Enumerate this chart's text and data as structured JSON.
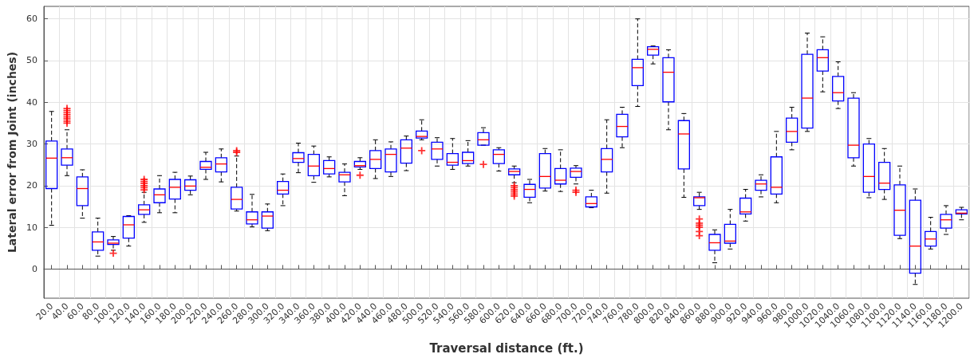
{
  "chart_data": {
    "type": "box",
    "xlabel": "Traversal distance (ft.)",
    "ylabel": "Lateral error from Joint (inches)",
    "color": "#0000ff",
    "grid": true,
    "ylim": [
      -7,
      63
    ],
    "yticks": [
      0,
      10,
      20,
      30,
      40,
      50,
      60
    ],
    "categories": [
      "20.0",
      "40.0",
      "60.0",
      "80.0",
      "100.0",
      "120.0",
      "140.0",
      "160.0",
      "180.0",
      "200.0",
      "220.0",
      "240.0",
      "260.0",
      "280.0",
      "300.0",
      "320.0",
      "340.0",
      "360.0",
      "380.0",
      "400.0",
      "420.0",
      "440.0",
      "460.0",
      "480.0",
      "500.0",
      "520.0",
      "540.0",
      "560.0",
      "580.0",
      "600.0",
      "620.0",
      "640.0",
      "660.0",
      "680.0",
      "700.0",
      "720.0",
      "740.0",
      "760.0",
      "780.0",
      "800.0",
      "820.0",
      "840.0",
      "860.0",
      "880.0",
      "900.0",
      "920.0",
      "940.0",
      "960.0",
      "980.0",
      "1000.0",
      "1020.0",
      "1040.0",
      "1060.0",
      "1080.0",
      "1100.0",
      "1120.0",
      "1140.0",
      "1160.0",
      "1180.0",
      "1200.0"
    ],
    "boxes": [
      {
        "low": 10.5,
        "q1": 19.3,
        "median": 26.6,
        "q3": 30.7,
        "high": 37.8
      },
      {
        "low": 22.4,
        "q1": 24.9,
        "median": 26.7,
        "q3": 28.8,
        "high": 33.4,
        "outliers": [
          35,
          35.5,
          36,
          36.5,
          37,
          37.5,
          38,
          38.5
        ]
      },
      {
        "low": 12.2,
        "q1": 15.2,
        "median": 19.3,
        "q3": 22.1,
        "high": 23.8
      },
      {
        "low": 3.1,
        "q1": 4.5,
        "median": 6.5,
        "q3": 8.9,
        "high": 12.2
      },
      {
        "low": 4.5,
        "q1": 5.9,
        "median": 6.2,
        "q3": 7.0,
        "high": 7.8,
        "outliers": [
          3.8
        ]
      },
      {
        "low": 5.5,
        "q1": 7.4,
        "median": 10.6,
        "q3": 12.6,
        "high": 12.8
      },
      {
        "low": 11.2,
        "q1": 13.1,
        "median": 14.2,
        "q3": 15.4,
        "high": 18.4,
        "outliers": [
          19,
          19.5,
          20,
          20.5,
          21,
          21.5
        ]
      },
      {
        "low": 13.5,
        "q1": 15.9,
        "median": 17.8,
        "q3": 19.2,
        "high": 22.4
      },
      {
        "low": 13.5,
        "q1": 16.8,
        "median": 19.6,
        "q3": 21.5,
        "high": 23.2
      },
      {
        "low": 17.8,
        "q1": 18.9,
        "median": 19.9,
        "q3": 21.4,
        "high": 22.3
      },
      {
        "low": 21.5,
        "q1": 23.9,
        "median": 24.4,
        "q3": 25.8,
        "high": 28.0
      },
      {
        "low": 20.9,
        "q1": 23.3,
        "median": 25.2,
        "q3": 26.7,
        "high": 28.8
      },
      {
        "low": 13.9,
        "q1": 14.4,
        "median": 16.7,
        "q3": 19.6,
        "high": 27.1,
        "outliers": [
          28.0,
          28.4
        ]
      },
      {
        "low": 10.1,
        "q1": 10.8,
        "median": 11.8,
        "q3": 13.7,
        "high": 17.9
      },
      {
        "low": 9.2,
        "q1": 9.8,
        "median": 12.7,
        "q3": 13.7,
        "high": 15.6
      },
      {
        "low": 15.2,
        "q1": 18.0,
        "median": 18.9,
        "q3": 21.0,
        "high": 22.8
      },
      {
        "low": 23.1,
        "q1": 25.6,
        "median": 26.5,
        "q3": 27.9,
        "high": 30.2
      },
      {
        "low": 20.8,
        "q1": 22.4,
        "median": 24.7,
        "q3": 27.5,
        "high": 29.5
      },
      {
        "low": 22.1,
        "q1": 22.8,
        "median": 24.1,
        "q3": 26.0,
        "high": 26.9
      },
      {
        "low": 17.6,
        "q1": 20.9,
        "median": 22.6,
        "q3": 23.2,
        "high": 25.2
      },
      {
        "low": 23.9,
        "q1": 24.5,
        "median": 24.8,
        "q3": 25.8,
        "high": 26.7,
        "outliers": [
          22.5
        ]
      },
      {
        "low": 21.7,
        "q1": 24.1,
        "median": 26.3,
        "q3": 28.4,
        "high": 31.0
      },
      {
        "low": 22.2,
        "q1": 23.3,
        "median": 27.5,
        "q3": 28.8,
        "high": 30.5
      },
      {
        "low": 23.6,
        "q1": 25.4,
        "median": 29.0,
        "q3": 31.0,
        "high": 31.9
      },
      {
        "low": 31.0,
        "q1": 31.4,
        "median": 31.8,
        "q3": 33.1,
        "high": 35.8,
        "outliers": [
          28.4
        ]
      },
      {
        "low": 24.7,
        "q1": 26.3,
        "median": 28.8,
        "q3": 30.4,
        "high": 31.5
      },
      {
        "low": 23.9,
        "q1": 24.9,
        "median": 25.6,
        "q3": 27.7,
        "high": 31.3
      },
      {
        "low": 24.7,
        "q1": 25.3,
        "median": 26.0,
        "q3": 28.0,
        "high": 30.8
      },
      {
        "low": 29.7,
        "q1": 29.7,
        "median": 31.0,
        "q3": 32.7,
        "high": 33.9,
        "outliers": [
          25.1
        ]
      },
      {
        "low": 23.5,
        "q1": 25.3,
        "median": 27.5,
        "q3": 28.6,
        "high": 29.1
      },
      {
        "low": 20.7,
        "q1": 22.6,
        "median": 23.4,
        "q3": 24.0,
        "high": 24.7,
        "outliers": [
          17.5,
          18,
          18.5,
          19,
          19.5,
          20
        ]
      },
      {
        "low": 15.9,
        "q1": 17.2,
        "median": 19.1,
        "q3": 20.3,
        "high": 21.5
      },
      {
        "low": 18.7,
        "q1": 19.4,
        "median": 22.2,
        "q3": 27.7,
        "high": 28.9
      },
      {
        "low": 18.6,
        "q1": 20.4,
        "median": 21.3,
        "q3": 24.1,
        "high": 28.6
      },
      {
        "low": 20.4,
        "q1": 22.0,
        "median": 23.4,
        "q3": 24.2,
        "high": 24.8,
        "outliers": [
          18.4,
          18.9
        ]
      },
      {
        "low": 14.7,
        "q1": 14.9,
        "median": 15.7,
        "q3": 17.3,
        "high": 18.9
      },
      {
        "low": 18.2,
        "q1": 23.3,
        "median": 26.3,
        "q3": 28.9,
        "high": 35.8
      },
      {
        "low": 29.1,
        "q1": 31.7,
        "median": 34.2,
        "q3": 37.1,
        "high": 38.8
      },
      {
        "low": 39.0,
        "q1": 44.0,
        "median": 48.3,
        "q3": 50.3,
        "high": 60.0
      },
      {
        "low": 49.2,
        "q1": 51.3,
        "median": 52.7,
        "q3": 53.3,
        "high": 53.5
      },
      {
        "low": 33.4,
        "q1": 40.1,
        "median": 47.2,
        "q3": 50.7,
        "high": 52.6
      },
      {
        "low": 17.2,
        "q1": 24.0,
        "median": 32.4,
        "q3": 35.6,
        "high": 37.3
      },
      {
        "low": 14.3,
        "q1": 15.2,
        "median": 17.1,
        "q3": 17.3,
        "high": 18.4,
        "outliers": [
          8,
          9,
          10,
          10.5,
          11,
          12
        ]
      },
      {
        "low": 1.5,
        "q1": 4.5,
        "median": 6.3,
        "q3": 8.3,
        "high": 9.4
      },
      {
        "low": 4.8,
        "q1": 6.2,
        "median": 6.7,
        "q3": 10.7,
        "high": 14.3
      },
      {
        "low": 11.5,
        "q1": 13.2,
        "median": 13.7,
        "q3": 17.0,
        "high": 19.1
      },
      {
        "low": 17.3,
        "q1": 18.9,
        "median": 20.4,
        "q3": 21.3,
        "high": 22.6
      },
      {
        "low": 15.9,
        "q1": 18.0,
        "median": 19.6,
        "q3": 26.9,
        "high": 33.0
      },
      {
        "low": 28.6,
        "q1": 30.4,
        "median": 33.0,
        "q3": 36.2,
        "high": 38.8
      },
      {
        "low": 33.0,
        "q1": 33.8,
        "median": 41.0,
        "q3": 51.5,
        "high": 56.6
      },
      {
        "low": 42.5,
        "q1": 47.5,
        "median": 50.7,
        "q3": 52.6,
        "high": 55.7
      },
      {
        "low": 38.5,
        "q1": 40.3,
        "median": 42.3,
        "q3": 46.2,
        "high": 49.7
      },
      {
        "low": 24.7,
        "q1": 26.7,
        "median": 29.7,
        "q3": 41.0,
        "high": 42.3
      },
      {
        "low": 17.1,
        "q1": 18.4,
        "median": 22.2,
        "q3": 30.0,
        "high": 31.3
      },
      {
        "low": 16.7,
        "q1": 19.1,
        "median": 20.6,
        "q3": 25.6,
        "high": 28.9
      },
      {
        "low": 7.3,
        "q1": 8.1,
        "median": 14.1,
        "q3": 20.2,
        "high": 24.7
      },
      {
        "low": -3.7,
        "q1": -1.0,
        "median": 5.5,
        "q3": 16.5,
        "high": 19.2
      },
      {
        "low": 4.8,
        "q1": 5.5,
        "median": 7.2,
        "q3": 9.0,
        "high": 12.4
      },
      {
        "low": 8.3,
        "q1": 9.8,
        "median": 11.8,
        "q3": 13.1,
        "high": 15.2
      },
      {
        "low": 11.8,
        "q1": 13.2,
        "median": 13.4,
        "q3": 14.2,
        "high": 14.8
      }
    ]
  }
}
